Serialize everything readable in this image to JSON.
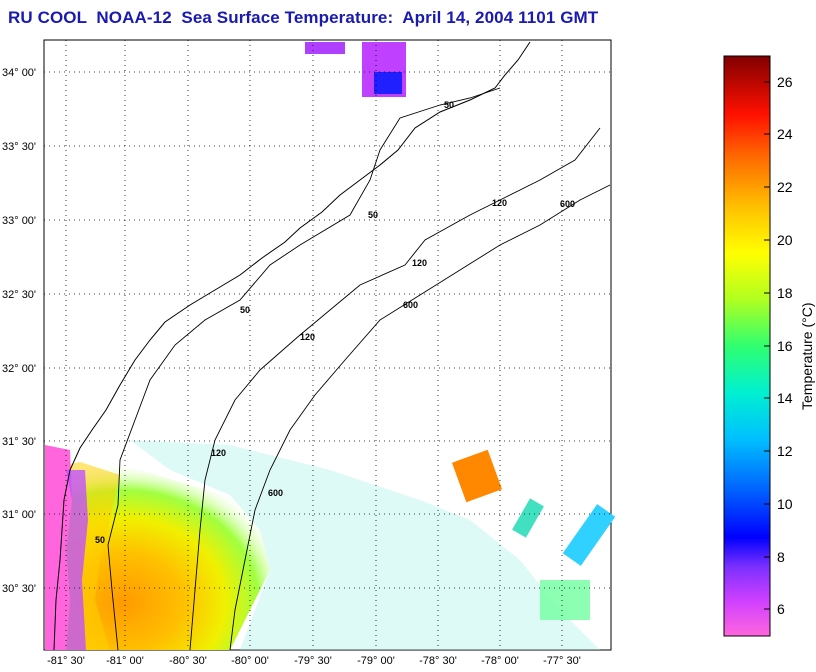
{
  "title": "RU COOL  NOAA-12  Sea Surface Temperature:  April 14, 2004 1101 GMT",
  "map": {
    "lat_labels": [
      "34° 00'",
      "33° 30'",
      "33° 00'",
      "32° 30'",
      "32° 00'",
      "31° 30'",
      "31° 00'",
      "30° 30'"
    ],
    "lon_labels": [
      "-81° 30'",
      "-81° 00'",
      "-80° 30'",
      "-80° 00'",
      "-79° 30'",
      "-79° 00'",
      "-78° 30'",
      "-78° 00'",
      "-77° 30'"
    ],
    "contour_labels": [
      "50",
      "120",
      "600"
    ],
    "land_color": "#ffffff",
    "no_data_color": "#ffffff"
  },
  "colorbar": {
    "label": "Temperature (°C)",
    "ticks": [
      "26",
      "24",
      "22",
      "20",
      "18",
      "16",
      "14",
      "12",
      "10",
      "8",
      "6"
    ],
    "range": [
      5,
      27
    ],
    "colors": [
      "#ff66cc",
      "#c040ff",
      "#6030ff",
      "#0010ff",
      "#0070ff",
      "#00c8ff",
      "#00f0c0",
      "#40ff60",
      "#c8ff20",
      "#ffff00",
      "#ffc000",
      "#ff8000",
      "#ff2000",
      "#d00000",
      "#8b0000"
    ]
  }
}
